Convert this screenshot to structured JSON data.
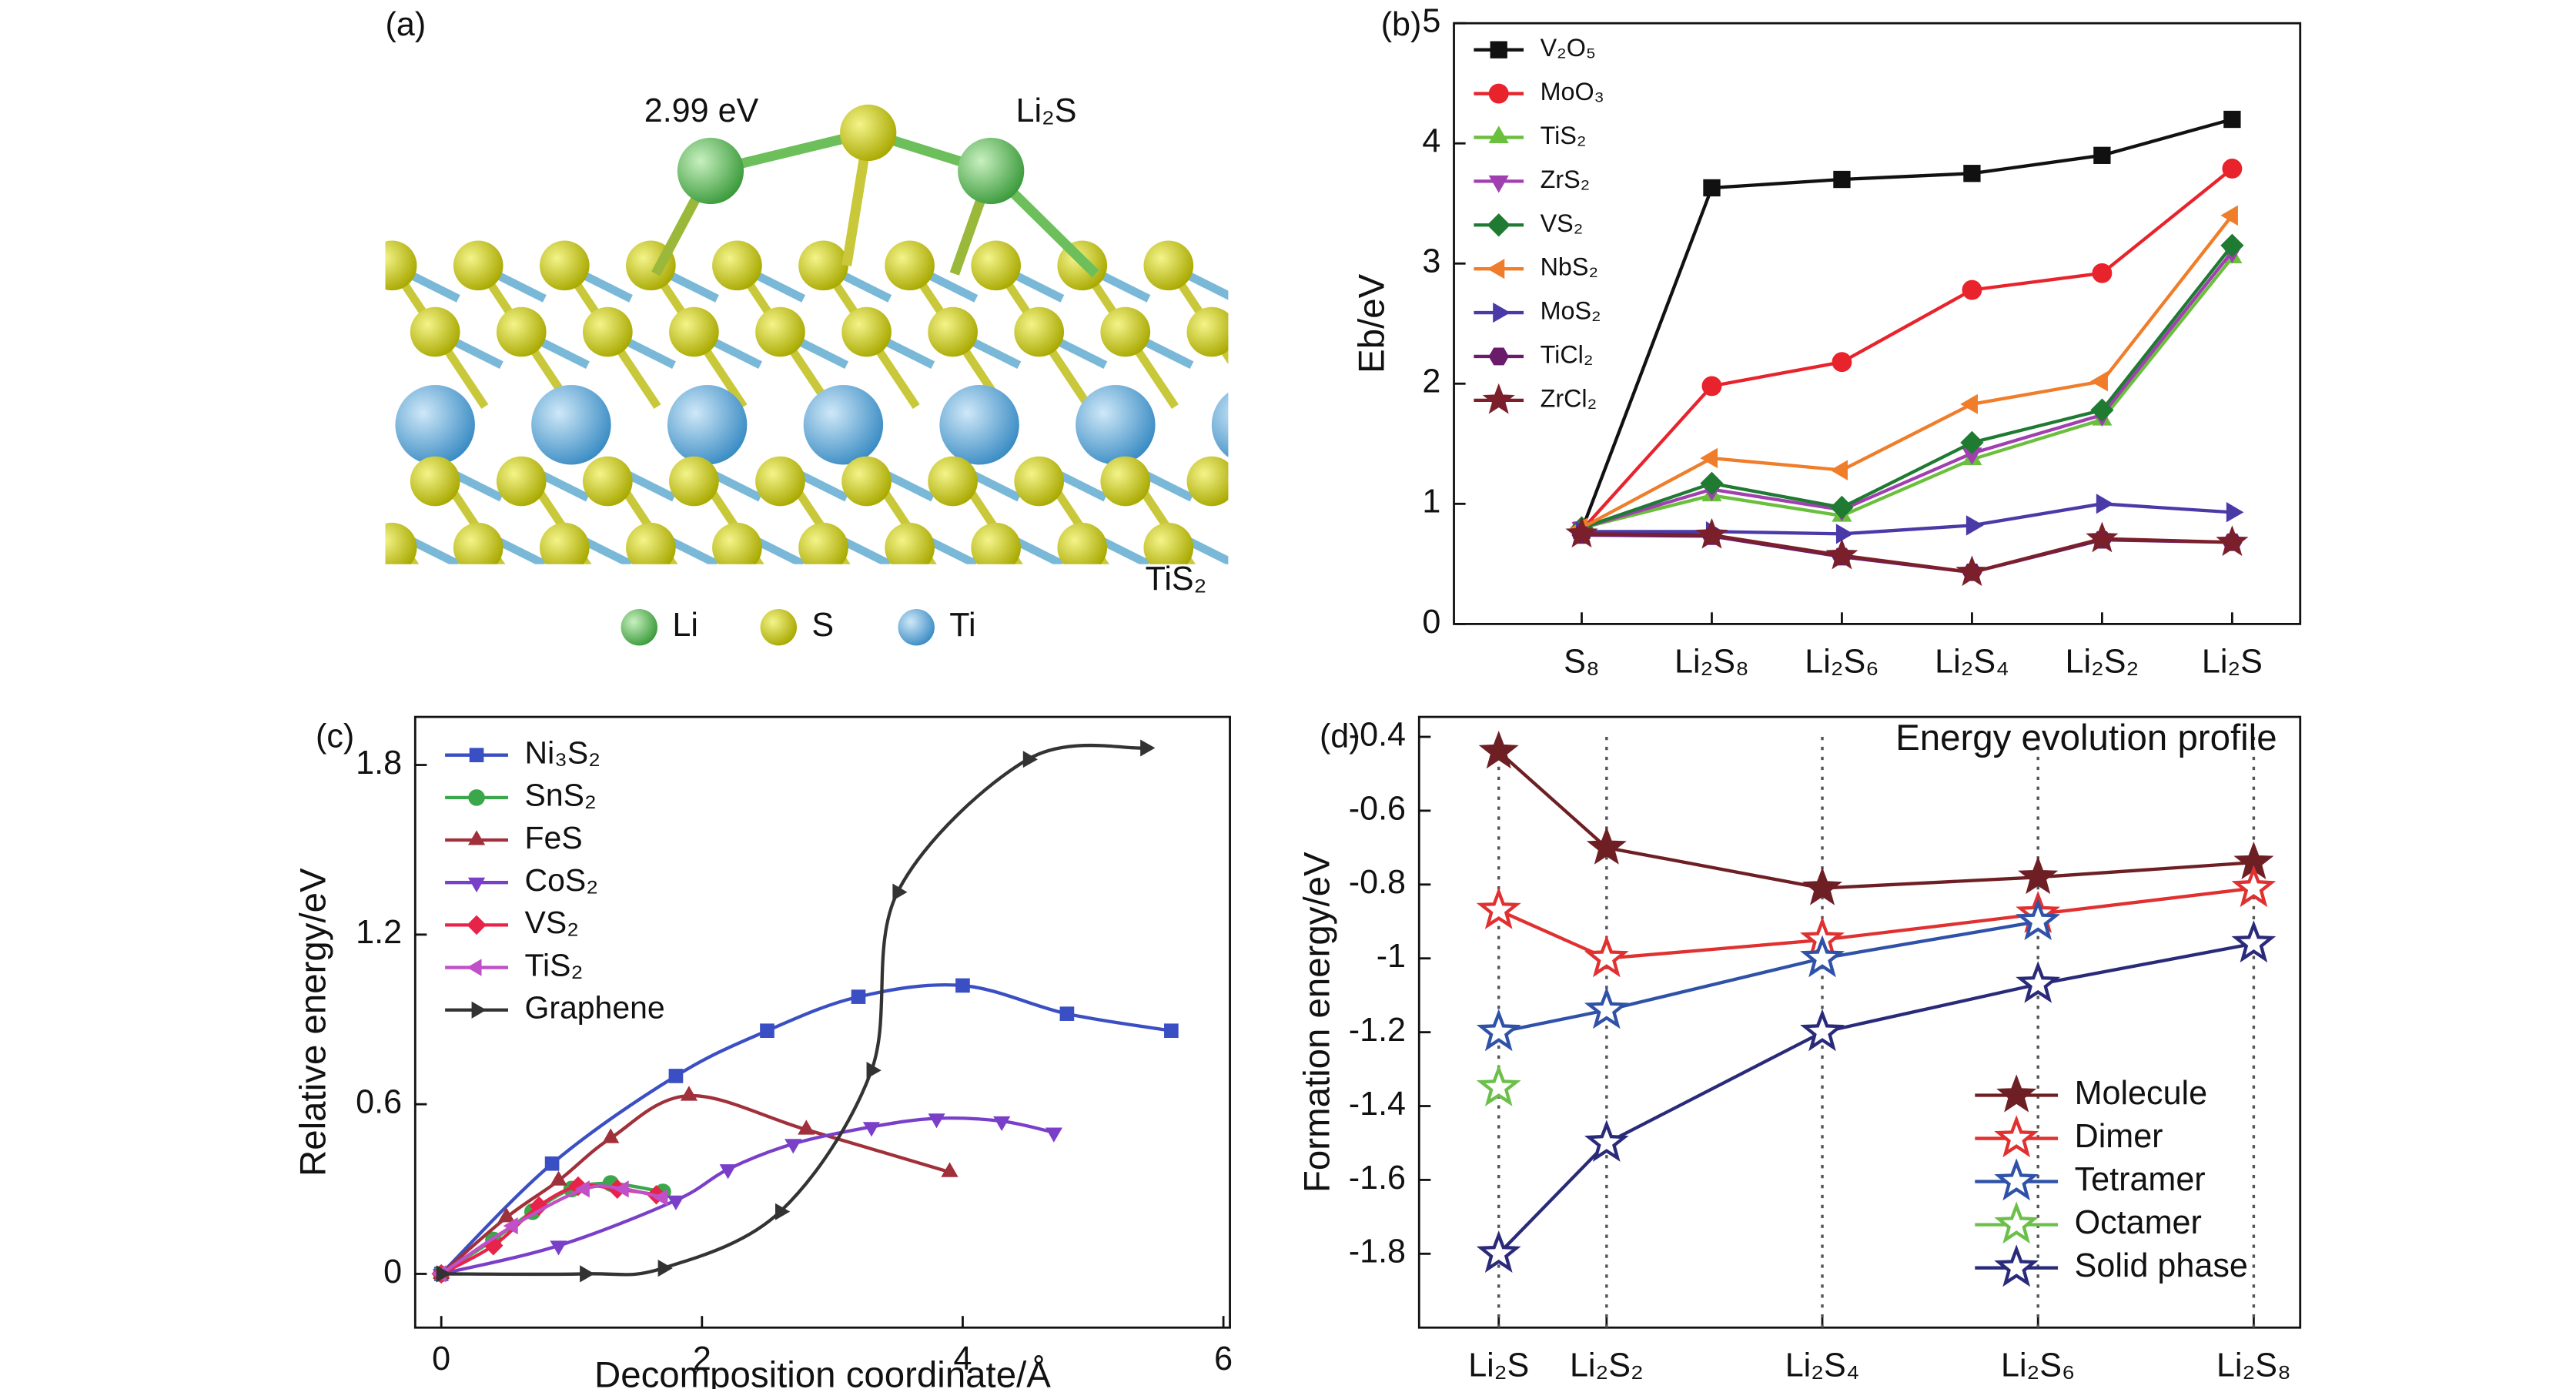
{
  "figure_a": {
    "label": "(a)",
    "annotations": [
      "2.99 eV",
      "Li₂S",
      "TiS₂"
    ],
    "legend": [
      "Li",
      "S",
      "Ti"
    ]
  },
  "chart_data": [
    {
      "type": "line",
      "label": "(b)",
      "y_label": "Eb/eV",
      "legend": "upper left",
      "categories": [
        "S₈",
        "Li₂S₈",
        "Li₂S₆",
        "Li₂S₄",
        "Li₂S₂",
        "Li₂S"
      ],
      "ylim": [
        0,
        5
      ],
      "yticks": [
        0,
        1,
        2,
        3,
        4,
        5
      ],
      "series": [
        {
          "name": "V₂O₅",
          "color": "#111111",
          "marker": "square",
          "values": [
            0.78,
            3.63,
            3.7,
            3.75,
            3.9,
            4.2
          ]
        },
        {
          "name": "MoO₃",
          "color": "#e8232c",
          "marker": "circle",
          "values": [
            0.78,
            1.98,
            2.18,
            2.78,
            2.92,
            3.79
          ]
        },
        {
          "name": "TiS₂",
          "color": "#6abf3c",
          "marker": "triangle-up",
          "values": [
            0.8,
            1.07,
            0.9,
            1.37,
            1.7,
            3.05
          ]
        },
        {
          "name": "ZrS₂",
          "color": "#a040b0",
          "marker": "triangle-down",
          "values": [
            0.8,
            1.12,
            0.95,
            1.42,
            1.74,
            3.1
          ]
        },
        {
          "name": "VS₂",
          "color": "#1f7a32",
          "marker": "diamond",
          "values": [
            0.8,
            1.17,
            0.97,
            1.51,
            1.78,
            3.15
          ]
        },
        {
          "name": "NbS₂",
          "color": "#ef7d2a",
          "marker": "triangle-left",
          "values": [
            0.8,
            1.38,
            1.28,
            1.83,
            2.02,
            3.4
          ]
        },
        {
          "name": "MoS₂",
          "color": "#4a3aa8",
          "marker": "triangle-right",
          "values": [
            0.77,
            0.77,
            0.75,
            0.82,
            1.0,
            0.93
          ]
        },
        {
          "name": "TiCl₂",
          "color": "#6a1b6a",
          "marker": "hexagon",
          "values": [
            0.74,
            0.73,
            0.56,
            0.43,
            0.7,
            0.68
          ]
        },
        {
          "name": "ZrCl₂",
          "color": "#7b1f2a",
          "marker": "star",
          "values": [
            0.75,
            0.74,
            0.57,
            0.43,
            0.71,
            0.68
          ]
        }
      ]
    },
    {
      "type": "line",
      "label": "(c)",
      "x_label": "Decomposition coordinate/Å",
      "y_label": "Relative energy/eV",
      "legend": "upper left",
      "smooth": true,
      "xlim": [
        -0.2,
        6.05
      ],
      "xticks": [
        0,
        2,
        4,
        6
      ],
      "ylim": [
        -0.19,
        1.97
      ],
      "yticks": [
        0,
        0.6,
        1.2,
        1.8
      ],
      "series": [
        {
          "name": "Ni₃S₂",
          "color": "#3b4fc4",
          "marker": "square",
          "x": [
            0,
            0.85,
            1.8,
            2.5,
            3.2,
            4.0,
            4.8,
            5.6
          ],
          "values": [
            0,
            0.39,
            0.7,
            0.86,
            0.98,
            1.02,
            0.92,
            0.86
          ]
        },
        {
          "name": "SnS₂",
          "color": "#3aa84a",
          "marker": "circle",
          "x": [
            0,
            0.4,
            0.7,
            1.0,
            1.3,
            1.7
          ],
          "values": [
            0,
            0.12,
            0.22,
            0.3,
            0.32,
            0.29
          ]
        },
        {
          "name": "FeS",
          "color": "#a0303a",
          "marker": "triangle-up",
          "x": [
            0,
            0.5,
            0.9,
            1.3,
            1.9,
            2.8,
            3.9
          ],
          "values": [
            0,
            0.2,
            0.33,
            0.48,
            0.63,
            0.51,
            0.36
          ]
        },
        {
          "name": "CoS₂",
          "color": "#7a3fc8",
          "marker": "triangle-down",
          "x": [
            0,
            0.9,
            1.8,
            2.2,
            2.7,
            3.3,
            3.8,
            4.3,
            4.7
          ],
          "values": [
            0,
            0.1,
            0.26,
            0.37,
            0.46,
            0.52,
            0.55,
            0.54,
            0.5
          ]
        },
        {
          "name": "VS₂",
          "color": "#e8234a",
          "marker": "diamond",
          "x": [
            0,
            0.4,
            0.75,
            1.05,
            1.35,
            1.65
          ],
          "values": [
            0,
            0.1,
            0.24,
            0.31,
            0.3,
            0.28
          ]
        },
        {
          "name": "TiS₂",
          "color": "#c050c8",
          "marker": "triangle-left",
          "x": [
            0,
            0.55,
            1.1,
            1.4,
            1.7
          ],
          "values": [
            0,
            0.17,
            0.3,
            0.3,
            0.27
          ]
        },
        {
          "name": "Graphene",
          "color": "#333333",
          "marker": "triangle-right",
          "x": [
            0,
            1.1,
            1.7,
            2.6,
            3.3,
            3.5,
            4.5,
            5.4
          ],
          "values": [
            0,
            0,
            0.02,
            0.22,
            0.72,
            1.35,
            1.82,
            1.86
          ]
        }
      ]
    },
    {
      "type": "line",
      "label": "(d)",
      "y_label": "Formation energy/eV",
      "annotation": "Energy evolution profile",
      "legend": "lower right",
      "categories": [
        "Li₂S",
        "Li₂S₂",
        "Li₂S₄",
        "Li₂S₆",
        "Li₂S₈"
      ],
      "ylim": [
        -2.0,
        -0.346
      ],
      "yticks": [
        -0.4,
        -0.6,
        -0.8,
        -1.0,
        -1.2,
        -1.4,
        -1.6,
        -1.8
      ],
      "series": [
        {
          "name": "Molecule",
          "color": "#6e1f24",
          "marker": "star",
          "values": [
            -0.44,
            -0.7,
            -0.81,
            -0.78,
            -0.74
          ]
        },
        {
          "name": "Dimer",
          "color": "#e03030",
          "marker": "star-open",
          "values": [
            -0.87,
            -1.0,
            -0.95,
            -0.88,
            -0.81
          ]
        },
        {
          "name": "Tetramer",
          "color": "#2f52a8",
          "marker": "star-open",
          "values": [
            -1.2,
            -1.14,
            -1.0,
            -0.9,
            null
          ]
        },
        {
          "name": "Octamer",
          "color": "#6cc04a",
          "marker": "star-open",
          "values": [
            -1.35,
            null,
            null,
            null,
            null
          ]
        },
        {
          "name": "Solid phase",
          "color": "#2a2a7a",
          "marker": "star-open",
          "values": [
            -1.8,
            -1.5,
            -1.2,
            -1.07,
            -0.96
          ]
        }
      ]
    }
  ]
}
